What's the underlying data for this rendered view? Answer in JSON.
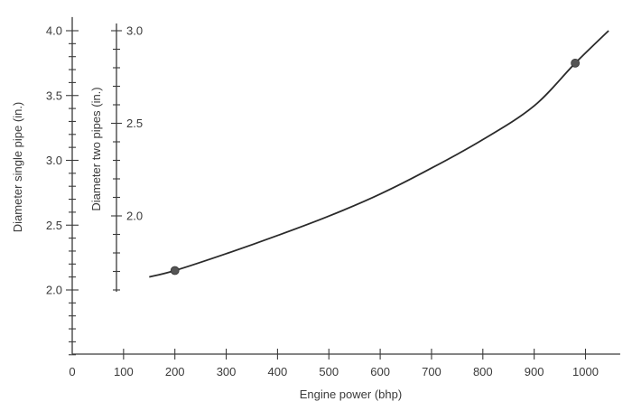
{
  "chart_data": {
    "type": "line",
    "xlabel": "Engine power (bhp)",
    "ylabel": "Diameter single pipe (in.)",
    "y2label": "Diameter two pipes (in.)",
    "xlim": [
      0,
      1050
    ],
    "ylim": [
      1.5,
      4.05
    ],
    "xticks": [
      0,
      100,
      200,
      300,
      400,
      500,
      600,
      700,
      800,
      900,
      1000
    ],
    "xtick_labels": [
      "0",
      "100",
      "200",
      "300",
      "400",
      "500",
      "600",
      "700",
      "800",
      "900",
      "1000"
    ],
    "yticks": [
      2.0,
      2.5,
      3.0,
      3.5,
      4.0
    ],
    "ytick_labels": [
      "2.0",
      "2.5",
      "3.0",
      "3.5",
      "4.0"
    ],
    "y_minor_step": 0.1,
    "y2_range": [
      1.6,
      3.0
    ],
    "y2ticks": [
      2.0,
      2.5,
      3.0
    ],
    "y2tick_labels": [
      "2.0",
      "2.5",
      "3.0"
    ],
    "y2_minor_step": 0.1,
    "y2_map": {
      "y2_at_y_2.0": 1.6,
      "y2_at_y_4.0": 3.0
    },
    "grid": false,
    "series": [
      {
        "x": [
          150,
          200,
          300,
          400,
          500,
          600,
          700,
          800,
          900,
          980,
          1045
        ],
        "values": [
          2.1,
          2.15,
          2.28,
          2.42,
          2.57,
          2.74,
          2.94,
          3.16,
          3.42,
          3.75,
          4.0
        ]
      }
    ],
    "markers": [
      {
        "x": 200,
        "y": 2.15
      },
      {
        "x": 980,
        "y": 3.75
      }
    ]
  }
}
